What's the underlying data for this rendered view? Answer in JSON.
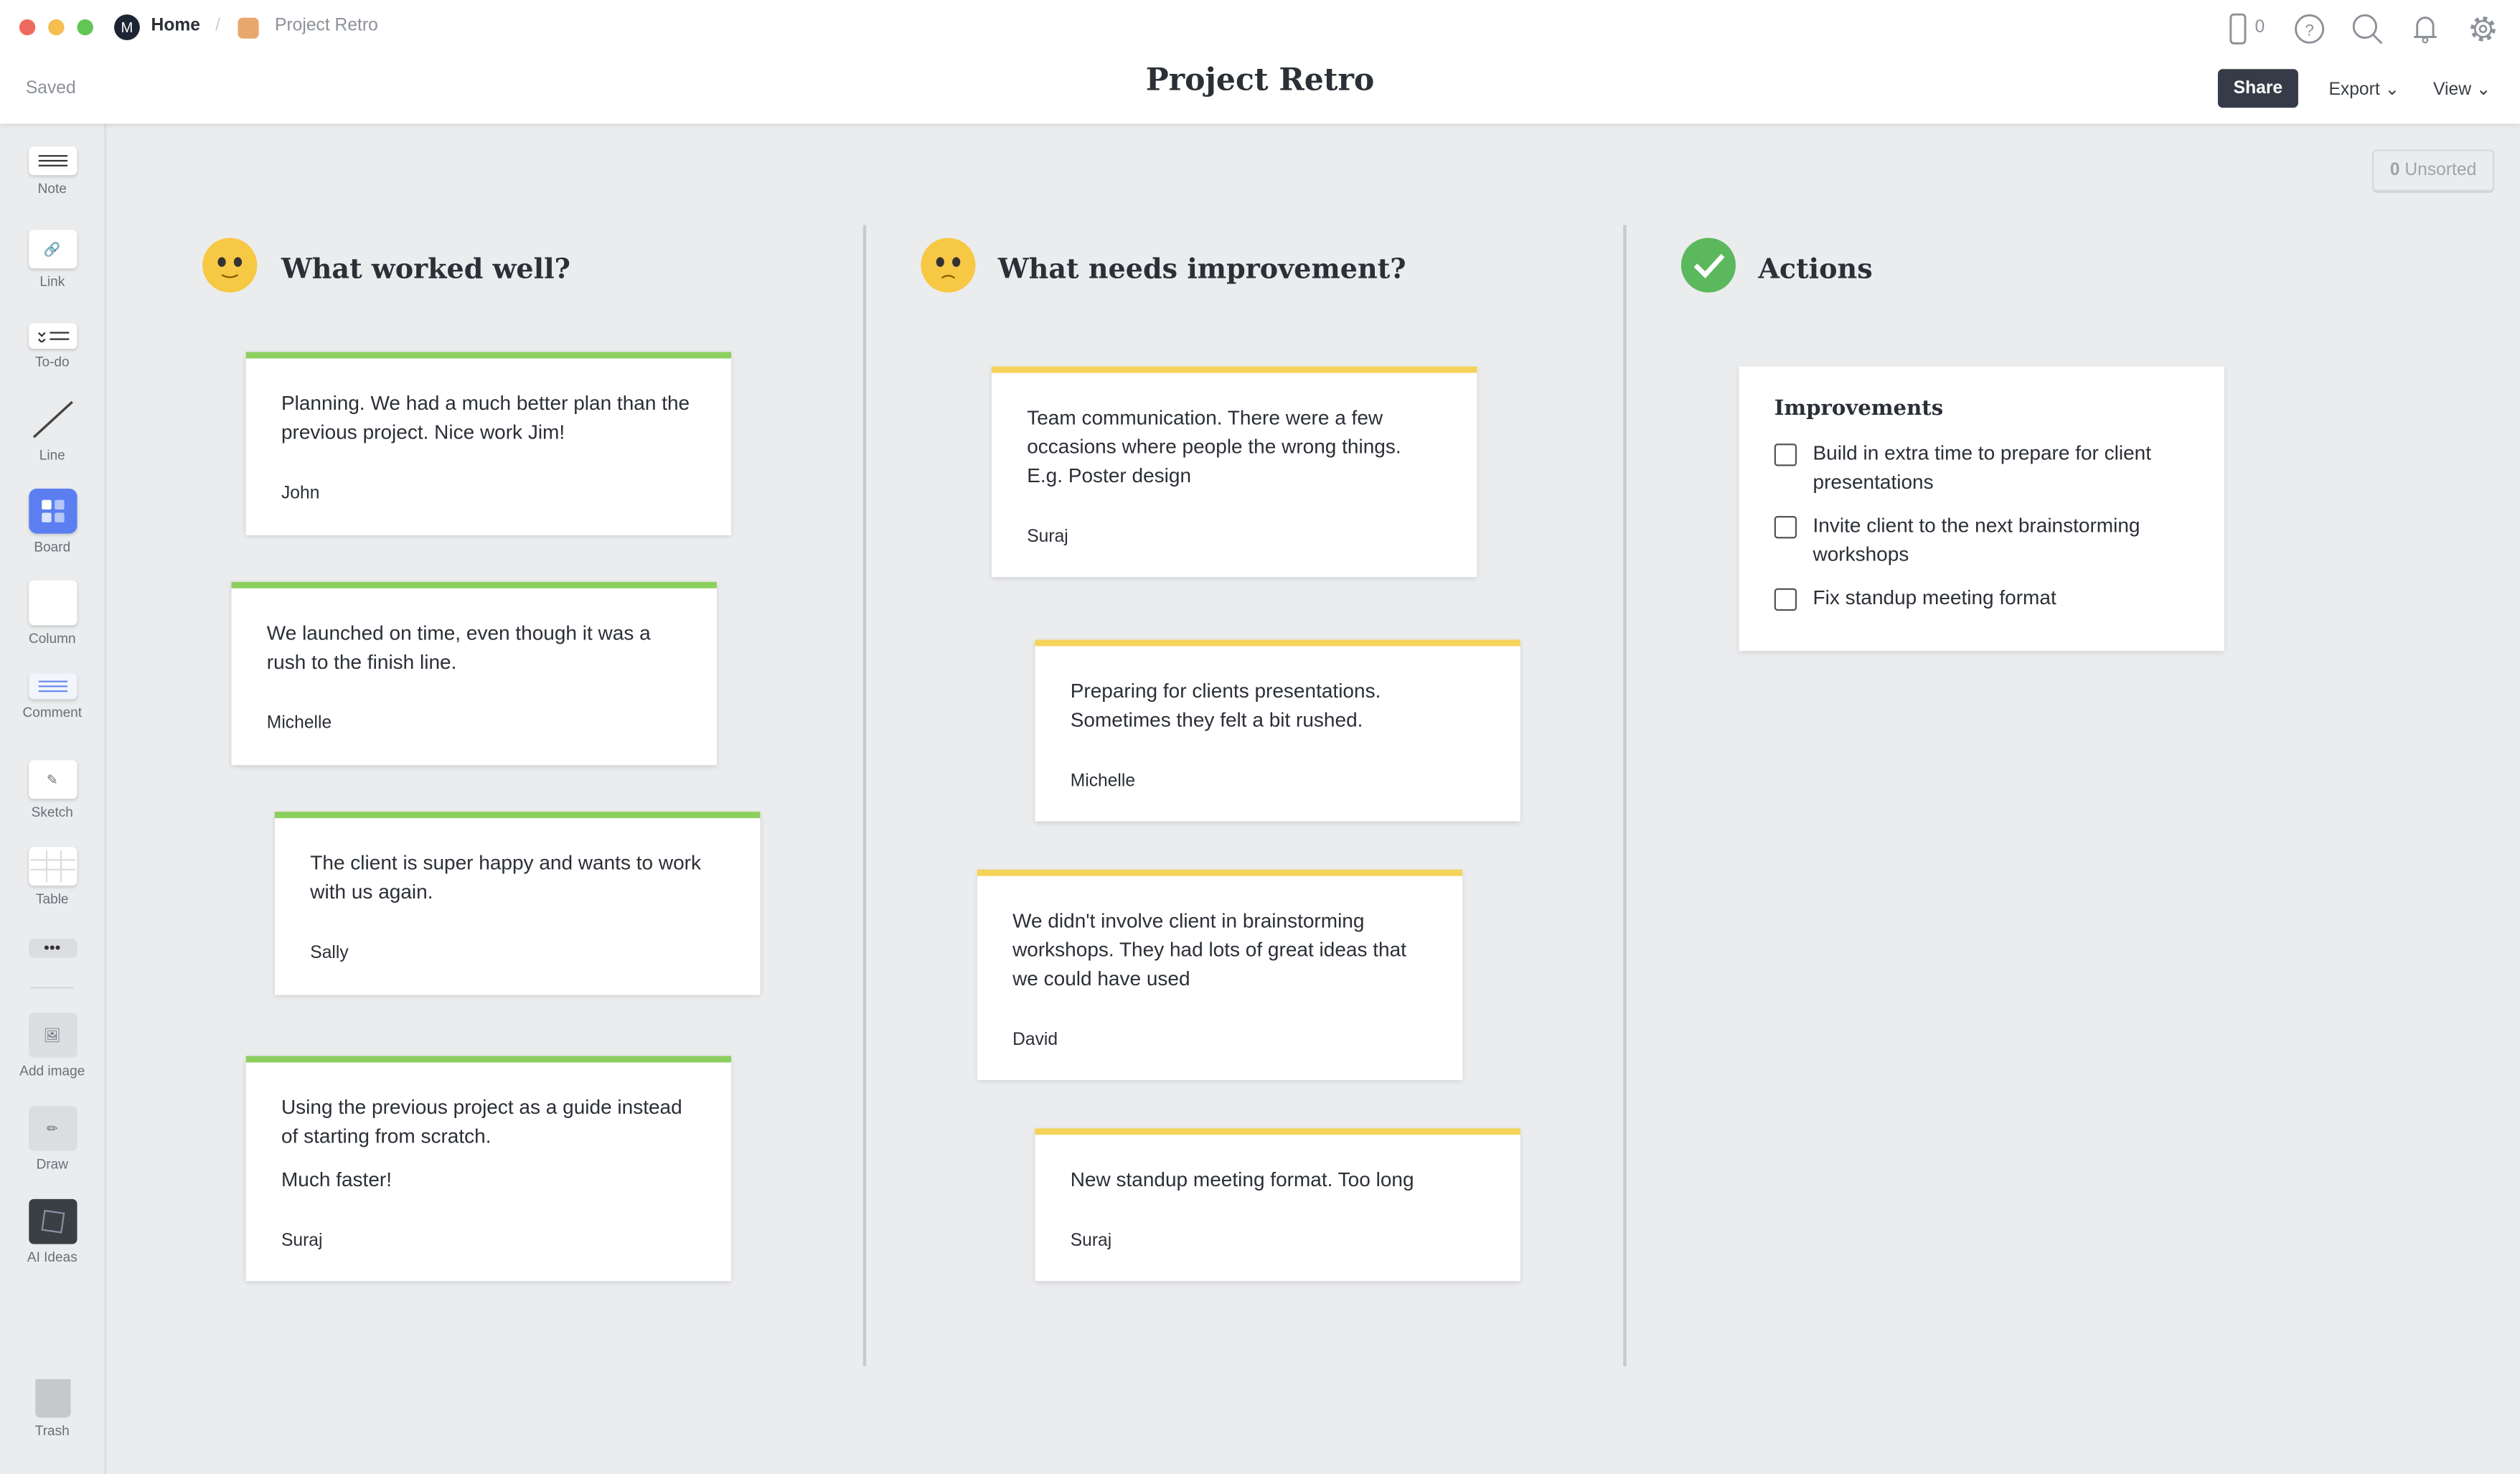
{
  "header": {
    "home": "Home",
    "breadcrumb": "Project Retro",
    "title": "Project Retro",
    "status": "Saved",
    "device_count": "0",
    "share": "Share",
    "export": "Export",
    "view": "View"
  },
  "toolbar": [
    {
      "label": "Note",
      "icon": "note-icon"
    },
    {
      "label": "Link",
      "icon": "link-icon"
    },
    {
      "label": "To-do",
      "icon": "todo-icon"
    },
    {
      "label": "Line",
      "icon": "line-icon"
    },
    {
      "label": "Board",
      "icon": "board-icon"
    },
    {
      "label": "Column",
      "icon": "column-icon"
    },
    {
      "label": "Comment",
      "icon": "comment-icon"
    },
    {
      "label": "Sketch",
      "icon": "sketch-icon"
    },
    {
      "label": "Table",
      "icon": "table-icon"
    },
    {
      "label": "Add image",
      "icon": "image-icon"
    },
    {
      "label": "Draw",
      "icon": "pencil-icon"
    },
    {
      "label": "AI Ideas",
      "icon": "ai-icon"
    },
    {
      "label": "Trash",
      "icon": "trash-icon"
    }
  ],
  "unsorted": {
    "count": "0",
    "label": "Unsorted"
  },
  "colors": {
    "green": "#8ccf5e",
    "yellow": "#f5d35a",
    "accent": "#5b7ff0"
  },
  "columns": [
    {
      "title": "What worked well?",
      "cards": [
        {
          "text": [
            "Planning. We had a much better plan than the previous project. Nice work Jim!"
          ],
          "author": "John"
        },
        {
          "text": [
            "We launched on time, even though it was a rush to the finish line."
          ],
          "author": "Michelle"
        },
        {
          "text": [
            "The client is super happy and wants to work with us again."
          ],
          "author": "Sally"
        },
        {
          "text": [
            "Using the previous project as a guide instead of starting from scratch.",
            "Much faster!"
          ],
          "author": "Suraj"
        }
      ]
    },
    {
      "title": "What needs improvement?",
      "cards": [
        {
          "text": [
            "Team communication. There were a few occasions where people the wrong things. E.g. Poster design"
          ],
          "author": "Suraj"
        },
        {
          "text": [
            "Preparing for clients presentations. Sometimes they felt a bit rushed."
          ],
          "author": "Michelle"
        },
        {
          "text": [
            "We didn't involve client in brainstorming workshops. They had lots of great ideas that we could have used"
          ],
          "author": "David"
        },
        {
          "text": [
            "New standup meeting format. Too long"
          ],
          "author": "Suraj"
        }
      ]
    },
    {
      "title": "Actions",
      "list": {
        "title": "Improvements",
        "items": [
          {
            "text": "Build in extra time to prepare for client presentations",
            "checked": false
          },
          {
            "text": "Invite client to the next brainstorming workshops",
            "checked": false
          },
          {
            "text": "Fix standup meeting format",
            "checked": false
          }
        ]
      }
    }
  ]
}
